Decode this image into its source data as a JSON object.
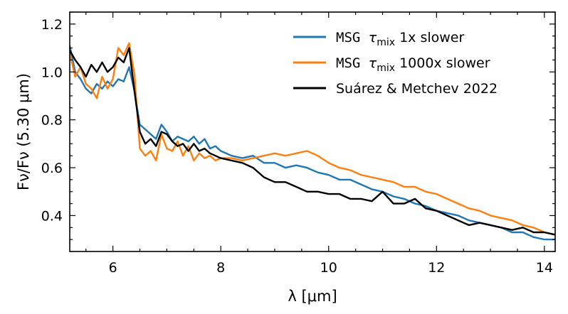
{
  "chart_data": {
    "type": "line",
    "title": "",
    "xlabel": "λ [μm]",
    "ylabel": "Fν/Fν (5.30 μm)",
    "xlim": [
      5.2,
      14.2
    ],
    "ylim": [
      0.25,
      1.25
    ],
    "xticks": [
      6,
      8,
      10,
      12,
      14
    ],
    "xtick_labels": [
      "6",
      "8",
      "10",
      "12",
      "14"
    ],
    "yticks": [
      0.4,
      0.6,
      0.8,
      1.0,
      1.2
    ],
    "ytick_labels": [
      "0.4",
      "0.6",
      "0.8",
      "1.0",
      "1.2"
    ],
    "grid": false,
    "legend_position": "top-right",
    "series": [
      {
        "name": "MSG τmix 1x slower",
        "legend": {
          "mono": "MSG",
          "sym": "τ",
          "sub": "mix",
          "rest": "1x slower"
        },
        "color": "#1f77b4",
        "x": [
          5.2,
          5.3,
          5.4,
          5.5,
          5.6,
          5.7,
          5.8,
          5.9,
          6.0,
          6.1,
          6.2,
          6.3,
          6.4,
          6.5,
          6.6,
          6.7,
          6.8,
          6.9,
          7.0,
          7.1,
          7.2,
          7.3,
          7.4,
          7.5,
          7.6,
          7.7,
          7.8,
          7.9,
          8.0,
          8.2,
          8.4,
          8.6,
          8.8,
          9.0,
          9.2,
          9.4,
          9.6,
          9.8,
          10.0,
          10.2,
          10.4,
          10.6,
          10.8,
          11.0,
          11.2,
          11.4,
          11.6,
          11.8,
          12.0,
          12.2,
          12.4,
          12.6,
          12.8,
          13.0,
          13.2,
          13.4,
          13.6,
          13.8,
          14.0,
          14.2
        ],
        "y": [
          1.11,
          1.0,
          0.97,
          0.93,
          0.91,
          0.95,
          0.93,
          0.96,
          0.94,
          0.97,
          0.96,
          1.02,
          0.92,
          0.78,
          0.76,
          0.74,
          0.72,
          0.78,
          0.75,
          0.71,
          0.73,
          0.72,
          0.71,
          0.73,
          0.7,
          0.72,
          0.68,
          0.69,
          0.67,
          0.65,
          0.64,
          0.65,
          0.62,
          0.62,
          0.6,
          0.61,
          0.6,
          0.58,
          0.57,
          0.55,
          0.55,
          0.53,
          0.51,
          0.5,
          0.48,
          0.47,
          0.45,
          0.44,
          0.42,
          0.41,
          0.4,
          0.38,
          0.37,
          0.36,
          0.35,
          0.33,
          0.33,
          0.31,
          0.3,
          0.3
        ]
      },
      {
        "name": "MSG τmix 1000x slower",
        "legend": {
          "mono": "MSG",
          "sym": "τ",
          "sub": "mix",
          "rest": "1000x slower"
        },
        "color": "#ff7f0e",
        "x": [
          5.2,
          5.3,
          5.4,
          5.5,
          5.6,
          5.7,
          5.8,
          5.9,
          6.0,
          6.1,
          6.2,
          6.3,
          6.4,
          6.5,
          6.6,
          6.7,
          6.8,
          6.9,
          7.0,
          7.1,
          7.2,
          7.3,
          7.4,
          7.5,
          7.6,
          7.7,
          7.8,
          7.9,
          8.0,
          8.2,
          8.4,
          8.6,
          8.8,
          9.0,
          9.2,
          9.4,
          9.6,
          9.8,
          10.0,
          10.2,
          10.4,
          10.6,
          10.8,
          11.0,
          11.2,
          11.4,
          11.6,
          11.8,
          12.0,
          12.2,
          12.4,
          12.6,
          12.8,
          13.0,
          13.2,
          13.4,
          13.6,
          13.8,
          14.0,
          14.2
        ],
        "y": [
          1.08,
          0.98,
          1.02,
          0.95,
          0.93,
          0.89,
          0.98,
          0.93,
          0.97,
          1.1,
          1.07,
          1.12,
          0.99,
          0.68,
          0.65,
          0.67,
          0.63,
          0.74,
          0.68,
          0.67,
          0.71,
          0.65,
          0.69,
          0.63,
          0.66,
          0.64,
          0.65,
          0.63,
          0.64,
          0.64,
          0.63,
          0.64,
          0.65,
          0.66,
          0.65,
          0.66,
          0.67,
          0.65,
          0.62,
          0.6,
          0.59,
          0.57,
          0.56,
          0.55,
          0.54,
          0.52,
          0.52,
          0.5,
          0.49,
          0.47,
          0.45,
          0.43,
          0.42,
          0.4,
          0.39,
          0.38,
          0.36,
          0.35,
          0.33,
          0.32
        ]
      },
      {
        "name": "Suárez & Metchev 2022",
        "legend": {
          "mono": "",
          "sym": "",
          "sub": "",
          "rest": "Suárez & Metchev 2022"
        },
        "color": "#000000",
        "x": [
          5.2,
          5.3,
          5.4,
          5.5,
          5.6,
          5.7,
          5.8,
          5.9,
          6.0,
          6.1,
          6.2,
          6.3,
          6.4,
          6.5,
          6.6,
          6.7,
          6.8,
          6.9,
          7.0,
          7.1,
          7.2,
          7.3,
          7.4,
          7.5,
          7.6,
          7.7,
          7.8,
          7.9,
          8.0,
          8.2,
          8.4,
          8.6,
          8.8,
          9.0,
          9.2,
          9.4,
          9.6,
          9.8,
          10.0,
          10.2,
          10.4,
          10.6,
          10.8,
          11.0,
          11.2,
          11.4,
          11.6,
          11.8,
          12.0,
          12.2,
          12.4,
          12.6,
          12.8,
          13.0,
          13.2,
          13.4,
          13.6,
          13.8,
          14.0,
          14.2
        ],
        "y": [
          1.09,
          1.05,
          1.02,
          0.98,
          1.03,
          1.0,
          1.04,
          1.0,
          1.02,
          1.06,
          1.04,
          1.1,
          0.92,
          0.75,
          0.7,
          0.72,
          0.69,
          0.75,
          0.74,
          0.71,
          0.69,
          0.7,
          0.67,
          0.7,
          0.67,
          0.68,
          0.66,
          0.65,
          0.64,
          0.63,
          0.62,
          0.6,
          0.56,
          0.54,
          0.54,
          0.52,
          0.5,
          0.5,
          0.49,
          0.49,
          0.47,
          0.47,
          0.46,
          0.5,
          0.45,
          0.45,
          0.47,
          0.43,
          0.42,
          0.4,
          0.38,
          0.36,
          0.37,
          0.36,
          0.35,
          0.34,
          0.35,
          0.33,
          0.33,
          0.32
        ]
      }
    ]
  }
}
